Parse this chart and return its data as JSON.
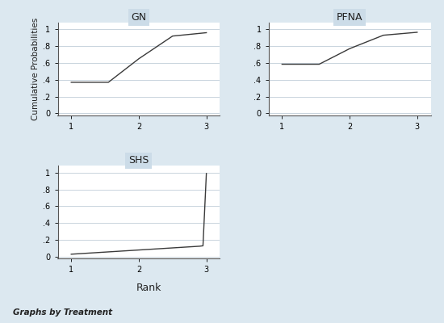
{
  "panels": [
    {
      "title": "GN",
      "x": [
        1,
        1.55,
        2,
        2.5,
        3
      ],
      "y": [
        0.37,
        0.37,
        0.65,
        0.92,
        0.96
      ]
    },
    {
      "title": "PFNA",
      "x": [
        1,
        1.55,
        2,
        2.5,
        3
      ],
      "y": [
        0.585,
        0.585,
        0.77,
        0.93,
        0.965
      ]
    },
    {
      "title": "SHS",
      "x": [
        1.0,
        1.1,
        1.2,
        1.3,
        1.4,
        1.5,
        1.6,
        1.7,
        1.8,
        1.9,
        2.0,
        2.1,
        2.2,
        2.3,
        2.4,
        2.5,
        2.6,
        2.7,
        2.8,
        2.9,
        2.95,
        3.0
      ],
      "y": [
        0.03,
        0.035,
        0.04,
        0.045,
        0.05,
        0.055,
        0.06,
        0.065,
        0.07,
        0.075,
        0.08,
        0.085,
        0.09,
        0.095,
        0.1,
        0.105,
        0.11,
        0.115,
        0.12,
        0.125,
        0.13,
        0.99
      ]
    }
  ],
  "ylabel": "Cumulative Probabilities",
  "xlabel": "Rank",
  "footer": "Graphs by Treatment",
  "xlim": [
    0.8,
    3.2
  ],
  "ylim": [
    -0.02,
    1.08
  ],
  "ytick_vals": [
    0,
    0.2,
    0.4,
    0.6,
    0.8,
    1.0
  ],
  "ytick_labels": [
    "0",
    ".2",
    ".4",
    ".6",
    ".8",
    "1"
  ],
  "xticks": [
    1,
    2,
    3
  ],
  "line_color": "#3a3a3a",
  "title_bg_color": "#ccdce8",
  "plot_bg_color": "#ffffff",
  "outer_bg": "#dce8f0",
  "grid_color": "#c0cdd8"
}
